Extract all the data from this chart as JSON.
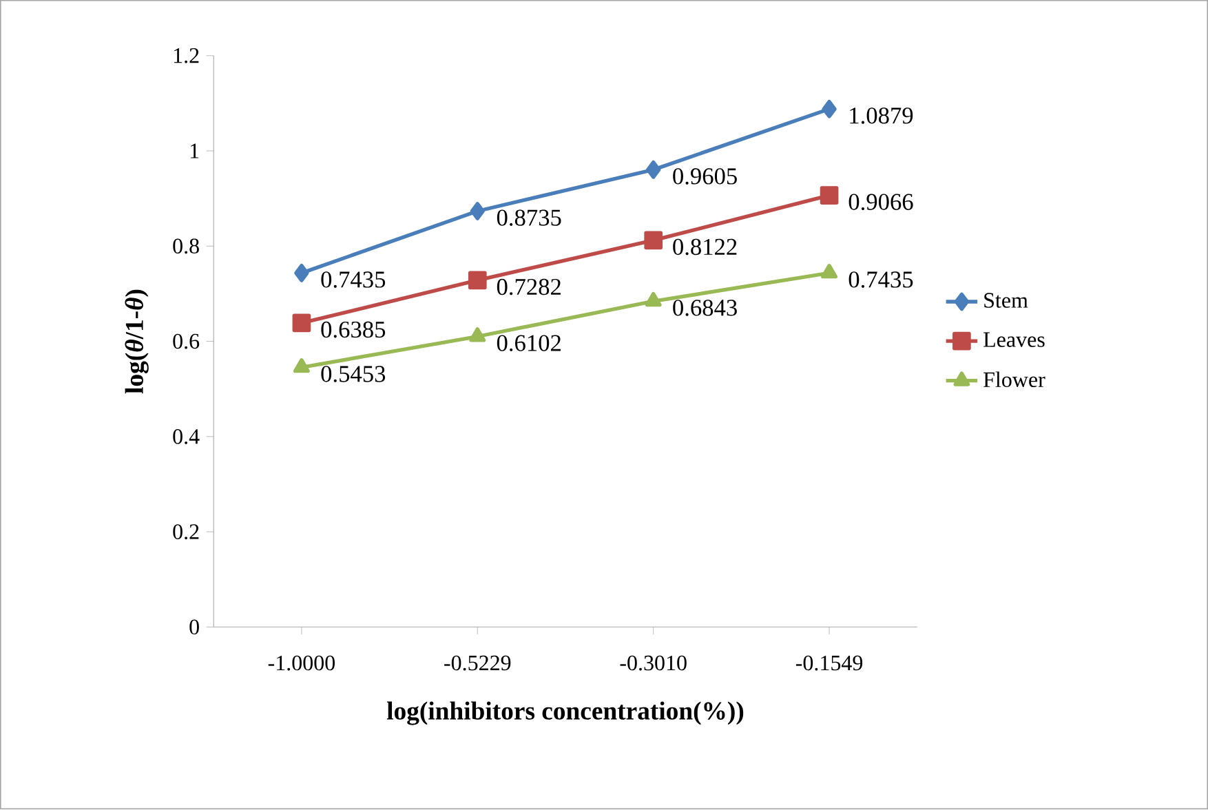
{
  "chart_data": {
    "type": "line",
    "xlabel": "log(inhibitors concentration(%))",
    "ylabel": "log(*θ*/1-*θ*)",
    "categories": [
      "-1.0000",
      "-0.5229",
      "-0.3010",
      "-0.1549"
    ],
    "series": [
      {
        "name": "Stem",
        "color": "#4a7ebb",
        "marker": "diamond",
        "values": [
          0.7435,
          0.8735,
          0.9605,
          1.0879
        ]
      },
      {
        "name": "Leaves",
        "color": "#be4b48",
        "marker": "square",
        "values": [
          0.6385,
          0.7282,
          0.8122,
          0.9066
        ]
      },
      {
        "name": "Flower",
        "color": "#98b954",
        "marker": "triangle",
        "values": [
          0.5453,
          0.6102,
          0.6843,
          0.7435
        ]
      }
    ],
    "ylim": [
      0,
      1.2
    ],
    "yticks": [
      0,
      0.2,
      0.4,
      0.6,
      0.8,
      1,
      1.2
    ],
    "data_labels": true,
    "legend": "right",
    "grid": false,
    "line_style": "solid"
  }
}
